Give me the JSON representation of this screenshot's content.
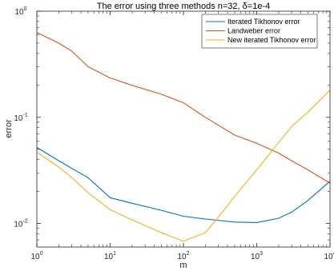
{
  "chart_data": {
    "type": "line",
    "title": "The error using three methods n=32, δ=1e-4",
    "xlabel": "m",
    "ylabel": "error",
    "xscale": "log",
    "yscale": "log",
    "xlim": [
      1,
      10000
    ],
    "ylim": [
      0.006,
      1
    ],
    "grid": false,
    "legend_position": "top-right",
    "x_ticks": [
      {
        "value": 1,
        "base": "10",
        "exp": "0"
      },
      {
        "value": 10,
        "base": "10",
        "exp": "1"
      },
      {
        "value": 100,
        "base": "10",
        "exp": "2"
      },
      {
        "value": 1000,
        "base": "10",
        "exp": "3"
      },
      {
        "value": 10000,
        "base": "10",
        "exp": "4"
      }
    ],
    "y_ticks": [
      {
        "value": 0.01,
        "base": "10",
        "exp": "-2"
      },
      {
        "value": 0.1,
        "base": "10",
        "exp": "-1"
      },
      {
        "value": 1,
        "base": "10",
        "exp": "0"
      }
    ],
    "series": [
      {
        "name": "Iterated Tikhonov error",
        "color": "#0072BD",
        "x": [
          1,
          2,
          3,
          5,
          10,
          20,
          50,
          100,
          200,
          500,
          1000,
          2000,
          3000,
          5000,
          10000
        ],
        "y": [
          0.052,
          0.039,
          0.033,
          0.027,
          0.0175,
          0.0155,
          0.0133,
          0.0117,
          0.011,
          0.0103,
          0.0102,
          0.0112,
          0.0128,
          0.0165,
          0.025
        ]
      },
      {
        "name": "Landweber error",
        "color": "#D95319",
        "x": [
          1,
          2,
          3,
          5,
          10,
          20,
          50,
          100,
          200,
          500,
          1000,
          2000,
          3000,
          5000,
          10000
        ],
        "y": [
          0.63,
          0.5,
          0.42,
          0.3,
          0.235,
          0.2,
          0.165,
          0.137,
          0.1,
          0.068,
          0.057,
          0.046,
          0.039,
          0.032,
          0.024
        ]
      },
      {
        "name": "New iterated Tikhonov error",
        "color": "#EDB120",
        "x": [
          1,
          2,
          3,
          5,
          10,
          20,
          50,
          100,
          200,
          300,
          500,
          1000,
          2000,
          3000,
          5000,
          10000
        ],
        "y": [
          0.047,
          0.034,
          0.027,
          0.0195,
          0.0135,
          0.0108,
          0.0082,
          0.0068,
          0.0082,
          0.0115,
          0.018,
          0.032,
          0.058,
          0.082,
          0.112,
          0.18
        ]
      }
    ]
  }
}
